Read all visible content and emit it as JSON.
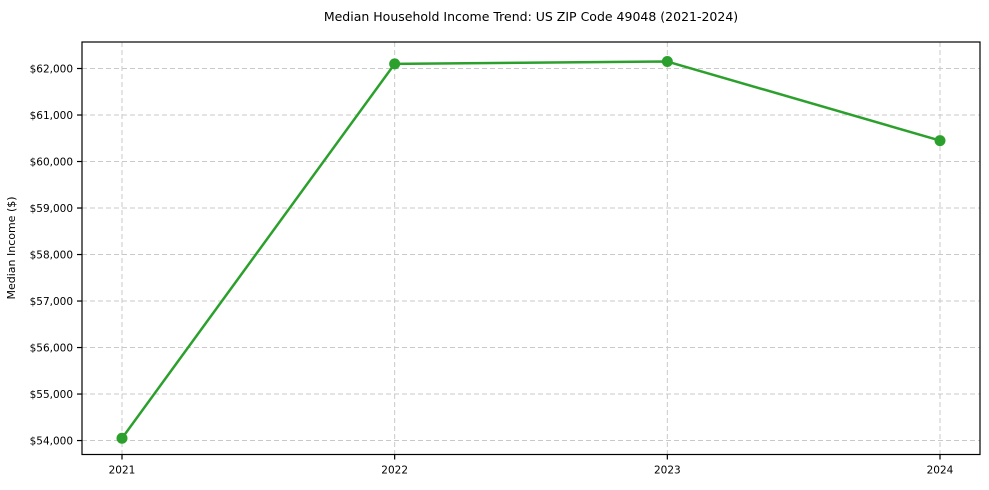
{
  "chart_data": {
    "type": "line",
    "title": "Median Household Income Trend: US ZIP Code 49048 (2021-2024)",
    "xlabel": "",
    "ylabel": "Median Income ($)",
    "x": [
      2021,
      2022,
      2023,
      2024
    ],
    "x_tick_labels": [
      "2021",
      "2022",
      "2023",
      "2024"
    ],
    "values": [
      54050,
      62100,
      62150,
      60450
    ],
    "y_ticks": [
      54000,
      55000,
      56000,
      57000,
      58000,
      59000,
      60000,
      61000,
      62000
    ],
    "y_tick_labels": [
      "$54,000",
      "$55,000",
      "$56,000",
      "$57,000",
      "$58,000",
      "$59,000",
      "$60,000",
      "$61,000",
      "$62,000"
    ],
    "ylim": [
      53700,
      62570
    ],
    "xlim": [
      2020.853,
      2024.147
    ],
    "grid": true,
    "grid_style": "dashed",
    "legend": "none",
    "line_color": "#2ca02c",
    "marker_color": "#2ca02c",
    "grid_color": "#c9c9c9",
    "spine_color": "#000000",
    "text_color": "#000000",
    "background_color": "#ffffff"
  }
}
